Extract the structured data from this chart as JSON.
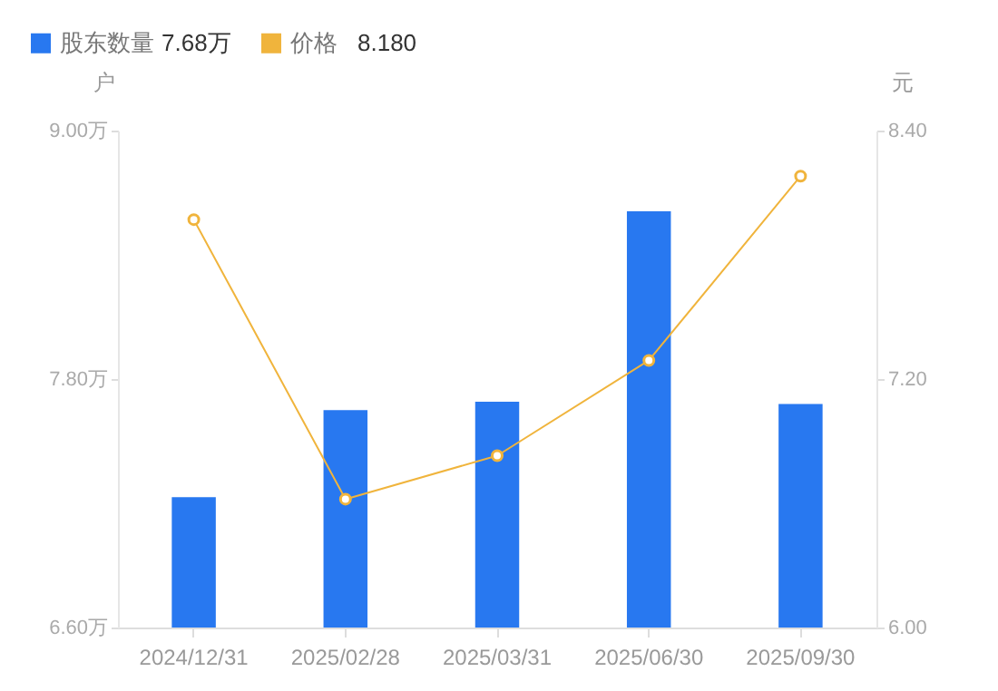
{
  "chart_data": {
    "type": "bar",
    "categories": [
      "2024/12/31",
      "2025/02/28",
      "2025/03/31",
      "2025/06/30",
      "2025/09/30"
    ],
    "ylabel": "户",
    "y2label": "元",
    "ylim": [
      6.6,
      9.0
    ],
    "yticks": [
      {
        "value": 6.6,
        "label": "6.60万"
      },
      {
        "value": 7.8,
        "label": "7.80万"
      },
      {
        "value": 9.0,
        "label": "9.00万"
      }
    ],
    "y2lim": [
      6.0,
      8.4
    ],
    "y2ticks": [
      {
        "value": 6.0,
        "label": "6.00"
      },
      {
        "value": 7.2,
        "label": "7.20"
      },
      {
        "value": 8.4,
        "label": "8.40"
      }
    ],
    "series": [
      {
        "name": "股东数量",
        "color": "#2878f0",
        "values": [
          7.23,
          7.65,
          7.69,
          8.61,
          7.68
        ]
      },
      {
        "name": "价格",
        "type": "line",
        "axis": "y2",
        "color": "#f0b43c",
        "marker": "circle",
        "values": [
          7.97,
          6.62,
          6.83,
          7.29,
          8.18
        ]
      }
    ],
    "annotations": [
      "7.68万",
      "8.180"
    ],
    "legend": "top left",
    "grid": false
  }
}
